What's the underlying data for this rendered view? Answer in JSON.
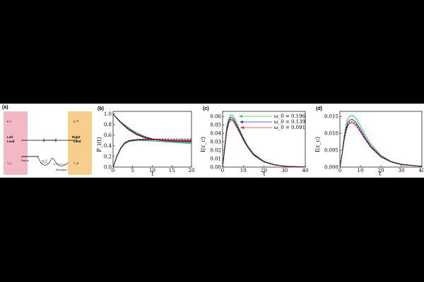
{
  "panels": {
    "a": {
      "label": "(a)",
      "left_lead": {
        "mu": "μ_L",
        "name_line1": "Left",
        "name_line2": "Lead",
        "temp": "T_L",
        "color": "#f2b8c4"
      },
      "right_lead": {
        "mu": "μ_R",
        "name_line1": "Right",
        "name_line2": "Lead",
        "temp": "T_R",
        "color": "#f8cd8e"
      },
      "donor": "Donor",
      "acceptor": "Acceptor",
      "omega": "ω_0"
    },
    "b": {
      "label": "(b)",
      "ylabel": "P_i(t)",
      "xlabel": "t",
      "xticks": [
        "0",
        "5",
        "10",
        "15",
        "20"
      ],
      "yticks": [
        "0.0",
        "0.2",
        "0.4",
        "0.6",
        "0.8",
        "1.0"
      ]
    },
    "c": {
      "label": "(c)",
      "ylabel": "I(ε_c)",
      "xlabel": "t",
      "xticks": [
        "0",
        "10",
        "20",
        "30",
        "40"
      ],
      "yticks": [
        "0.00",
        "0.01",
        "0.02",
        "0.03",
        "0.04",
        "0.05",
        "0.06"
      ],
      "legend": [
        {
          "text": "ω_0 = 0.196",
          "color": "#2fd22f"
        },
        {
          "text": "ω_0 = 0.139",
          "color": "#2b2bd8"
        },
        {
          "text": "ω_0 = 0.091",
          "color": "#e0252c"
        }
      ]
    },
    "d": {
      "label": "(d)",
      "ylabel": "I(ε_c)",
      "xlabel": "t",
      "xticks": [
        "0",
        "10",
        "20",
        "30",
        "40"
      ],
      "yticks": [
        "0.000",
        "0.005",
        "0.010",
        "0.015"
      ]
    }
  },
  "chart_data": [
    {
      "type": "line",
      "panel": "b",
      "xlabel": "t",
      "ylabel": "P_i(t)",
      "xlim": [
        0,
        20
      ],
      "ylim": [
        0,
        1.05
      ],
      "series": [
        {
          "color": "#2fd22f",
          "x": [
            0,
            2,
            4,
            6,
            8,
            10,
            12,
            15,
            20
          ],
          "y": [
            1.0,
            0.85,
            0.74,
            0.65,
            0.58,
            0.53,
            0.5,
            0.47,
            0.44
          ]
        },
        {
          "color": "#2b2bd8",
          "x": [
            0,
            2,
            4,
            6,
            8,
            10,
            12,
            15,
            20
          ],
          "y": [
            1.0,
            0.84,
            0.72,
            0.63,
            0.57,
            0.53,
            0.5,
            0.48,
            0.47
          ]
        },
        {
          "color": "#e0252c",
          "x": [
            0,
            2,
            4,
            6,
            8,
            10,
            12,
            15,
            20
          ],
          "y": [
            1.0,
            0.83,
            0.7,
            0.61,
            0.55,
            0.52,
            0.5,
            0.49,
            0.48
          ]
        },
        {
          "color": "#000000",
          "dashed": true,
          "x": [
            0,
            2,
            4,
            6,
            8,
            10,
            12,
            15,
            20
          ],
          "y": [
            1.0,
            0.84,
            0.71,
            0.62,
            0.56,
            0.53,
            0.52,
            0.51,
            0.51
          ]
        },
        {
          "color": "#2fd22f",
          "x": [
            0,
            1,
            2,
            3,
            4,
            6,
            8,
            10,
            15,
            20
          ],
          "y": [
            0.0,
            0.2,
            0.35,
            0.44,
            0.48,
            0.5,
            0.5,
            0.49,
            0.47,
            0.45
          ]
        },
        {
          "color": "#2b2bd8",
          "x": [
            0,
            1,
            2,
            3,
            4,
            6,
            8,
            10,
            15,
            20
          ],
          "y": [
            0.0,
            0.2,
            0.36,
            0.45,
            0.49,
            0.51,
            0.51,
            0.51,
            0.5,
            0.49
          ]
        },
        {
          "color": "#e0252c",
          "x": [
            0,
            1,
            2,
            3,
            4,
            6,
            8,
            10,
            15,
            20
          ],
          "y": [
            0.0,
            0.21,
            0.37,
            0.46,
            0.5,
            0.52,
            0.52,
            0.52,
            0.51,
            0.5
          ]
        },
        {
          "color": "#000000",
          "dashed": true,
          "x": [
            0,
            1,
            2,
            3,
            4,
            6,
            8,
            10,
            15,
            20
          ],
          "y": [
            0.0,
            0.21,
            0.37,
            0.46,
            0.5,
            0.52,
            0.53,
            0.53,
            0.53,
            0.53
          ]
        }
      ]
    },
    {
      "type": "line",
      "panel": "c",
      "xlabel": "t",
      "ylabel": "I(ε_c)",
      "xlim": [
        0,
        40
      ],
      "ylim": [
        0,
        0.066
      ],
      "series": [
        {
          "name": "ω_0 = 0.196",
          "color": "#2fd22f",
          "x": [
            0,
            1,
            2,
            3,
            4,
            5,
            6,
            8,
            10,
            12,
            15,
            20,
            25,
            30,
            40
          ],
          "y": [
            0,
            0.025,
            0.048,
            0.058,
            0.062,
            0.061,
            0.057,
            0.046,
            0.035,
            0.026,
            0.016,
            0.007,
            0.003,
            0.001,
            0.0002
          ]
        },
        {
          "name": "ω_0 = 0.139",
          "color": "#2b2bd8",
          "x": [
            0,
            1,
            2,
            3,
            4,
            5,
            6,
            8,
            10,
            12,
            15,
            20,
            25,
            30,
            40
          ],
          "y": [
            0,
            0.023,
            0.045,
            0.055,
            0.059,
            0.058,
            0.054,
            0.044,
            0.034,
            0.025,
            0.015,
            0.0065,
            0.0028,
            0.001,
            0.0002
          ]
        },
        {
          "name": "ω_0 = 0.091",
          "color": "#e0252c",
          "x": [
            0,
            1,
            2,
            3,
            4,
            5,
            6,
            8,
            10,
            12,
            15,
            20,
            25,
            30,
            40
          ],
          "y": [
            0,
            0.021,
            0.042,
            0.052,
            0.056,
            0.055,
            0.051,
            0.042,
            0.032,
            0.024,
            0.014,
            0.006,
            0.0025,
            0.0009,
            0.0002
          ]
        },
        {
          "color": "#000000",
          "dashed": true,
          "x": [
            0,
            1,
            2,
            3,
            4,
            5,
            6,
            8,
            10,
            12,
            15,
            20,
            25,
            30,
            40
          ],
          "y": [
            0,
            0.022,
            0.044,
            0.054,
            0.057,
            0.056,
            0.052,
            0.043,
            0.033,
            0.024,
            0.0145,
            0.0062,
            0.0026,
            0.0009,
            0.0002
          ]
        }
      ]
    },
    {
      "type": "line",
      "panel": "d",
      "xlabel": "t",
      "ylabel": "I(ε_c)",
      "xlim": [
        0,
        40
      ],
      "ylim": [
        0,
        0.0165
      ],
      "series": [
        {
          "color": "#2fd22f",
          "x": [
            0,
            1,
            2,
            3,
            4,
            5,
            6,
            7,
            8,
            10,
            12,
            15,
            20,
            25,
            30,
            40
          ],
          "y": [
            0,
            0.004,
            0.009,
            0.0125,
            0.0145,
            0.0152,
            0.0153,
            0.015,
            0.0143,
            0.0122,
            0.0099,
            0.0069,
            0.0035,
            0.0017,
            0.0009,
            0.0002
          ]
        },
        {
          "color": "#2b2bd8",
          "x": [
            0,
            1,
            2,
            3,
            4,
            5,
            6,
            7,
            8,
            10,
            12,
            15,
            20,
            25,
            30,
            40
          ],
          "y": [
            0,
            0.0037,
            0.0083,
            0.0115,
            0.0133,
            0.014,
            0.0141,
            0.0138,
            0.0131,
            0.0112,
            0.0091,
            0.0063,
            0.0032,
            0.0016,
            0.0008,
            0.0002
          ]
        },
        {
          "color": "#e0252c",
          "x": [
            0,
            1,
            2,
            3,
            4,
            5,
            6,
            7,
            8,
            10,
            12,
            15,
            20,
            25,
            30,
            40
          ],
          "y": [
            0,
            0.0034,
            0.0077,
            0.0107,
            0.0124,
            0.013,
            0.0131,
            0.0128,
            0.0122,
            0.0104,
            0.0085,
            0.0059,
            0.003,
            0.0015,
            0.0007,
            0.0002
          ]
        },
        {
          "color": "#000000",
          "dashed": true,
          "x": [
            0,
            1,
            2,
            3,
            4,
            5,
            6,
            7,
            8,
            10,
            12,
            15,
            20,
            25,
            30,
            40
          ],
          "y": [
            0,
            0.0035,
            0.008,
            0.011,
            0.0128,
            0.0134,
            0.0135,
            0.0132,
            0.0126,
            0.0107,
            0.0087,
            0.006,
            0.0031,
            0.0015,
            0.0007,
            0.0002
          ]
        }
      ]
    }
  ]
}
